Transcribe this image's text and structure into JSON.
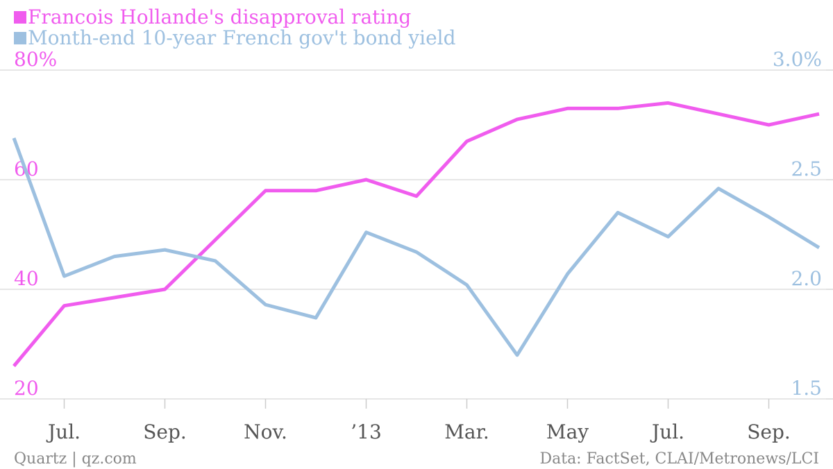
{
  "chart_data": {
    "type": "line",
    "categories": [
      null,
      "Jul.",
      null,
      "Sep.",
      null,
      "Nov.",
      null,
      "’13",
      null,
      "Mar.",
      null,
      "May",
      null,
      "Jul.",
      null,
      "Sep.",
      null
    ],
    "series": [
      {
        "name": "Francois Hollande's disapproval rating",
        "color": "#f05cee",
        "axis": "y",
        "values": [
          26,
          37,
          38.5,
          40,
          49,
          58,
          58,
          60,
          57,
          67,
          71,
          73,
          73,
          74,
          72,
          70,
          72
        ]
      },
      {
        "name": "Month-end 10-year French gov't bond yield",
        "color": "#9dc0e0",
        "axis": "y2",
        "values": [
          2.69,
          2.06,
          2.15,
          2.18,
          2.13,
          1.93,
          1.87,
          2.26,
          2.17,
          2.02,
          1.7,
          2.07,
          2.35,
          2.24,
          2.46,
          2.33,
          2.19
        ]
      }
    ],
    "ylim": [
      20,
      80
    ],
    "yticks": [
      20,
      40,
      60,
      {
        "value": 80,
        "label": "80%"
      }
    ],
    "y2lim": [
      1.5,
      3
    ],
    "y2ticks": [
      1.5,
      {
        "value": 2,
        "label": "2.0"
      },
      2.5,
      {
        "value": 3,
        "label": "3.0%"
      }
    ],
    "grid": true,
    "source": "Data: FactSet, CLAI/Metronews/LCI",
    "credit": "Quartz | qz.com"
  }
}
